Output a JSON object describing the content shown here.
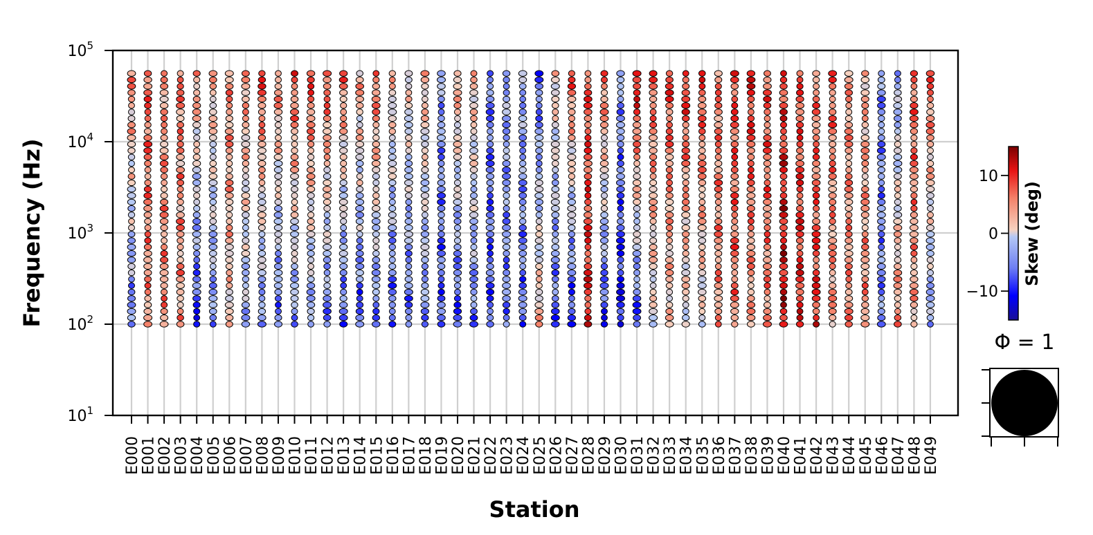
{
  "chart_data": {
    "type": "phase-tensor-pseudosection",
    "xlabel": "Station",
    "ylabel": "Frequency (Hz)",
    "y_scale": "log",
    "ylim": [
      10,
      100000
    ],
    "y_ticks": [
      {
        "value": 10,
        "base": "10",
        "exp": "1"
      },
      {
        "value": 100,
        "base": "10",
        "exp": "2"
      },
      {
        "value": 1000,
        "base": "10",
        "exp": "3"
      },
      {
        "value": 10000,
        "base": "10",
        "exp": "4"
      },
      {
        "value": 100000,
        "base": "10",
        "exp": "5"
      }
    ],
    "grid": true,
    "stations": [
      "E000",
      "E001",
      "E002",
      "E003",
      "E004",
      "E005",
      "E006",
      "E007",
      "E008",
      "E009",
      "E010",
      "E011",
      "E012",
      "E013",
      "E014",
      "E015",
      "E016",
      "E017",
      "E018",
      "E019",
      "E020",
      "E021",
      "E022",
      "E023",
      "E024",
      "E025",
      "E026",
      "E027",
      "E028",
      "E029",
      "E030",
      "E031",
      "E032",
      "E033",
      "E034",
      "E035",
      "E036",
      "E037",
      "E038",
      "E039",
      "E040",
      "E041",
      "E042",
      "E043",
      "E044",
      "E045",
      "E046",
      "E047",
      "E048",
      "E049"
    ],
    "frequency_range_hz": [
      100,
      56000
    ],
    "points_per_station": 40,
    "colorbar": {
      "label": "Skew (deg)",
      "range": [
        -15,
        15
      ],
      "ticks": [
        {
          "value": 10,
          "label": "10"
        },
        {
          "value": 0,
          "label": "0"
        },
        {
          "value": -10,
          "label": "−10"
        }
      ],
      "colormap": [
        "#1a0f96",
        "#0000ff",
        "#6e7ef4",
        "#b4c8f5",
        "#f6d2c0",
        "#f4826a",
        "#e81414",
        "#7a0000"
      ]
    },
    "skew_profiles": [
      {
        "station": "E000",
        "a": -7,
        "b": 6,
        "c": 2
      },
      {
        "station": "E001",
        "a": 5,
        "b": 8,
        "c": -1
      },
      {
        "station": "E002",
        "a": 6,
        "b": 5,
        "c": 1
      },
      {
        "station": "E003",
        "a": 4,
        "b": 7,
        "c": -2
      },
      {
        "station": "E004",
        "a": -10,
        "b": 6,
        "c": 1
      },
      {
        "station": "E005",
        "a": -6,
        "b": 4,
        "c": 0
      },
      {
        "station": "E006",
        "a": 2,
        "b": 6,
        "c": -1
      },
      {
        "station": "E007",
        "a": -4,
        "b": 6,
        "c": 1
      },
      {
        "station": "E008",
        "a": -6,
        "b": 9,
        "c": 0
      },
      {
        "station": "E009",
        "a": -7,
        "b": 6,
        "c": -1
      },
      {
        "station": "E010",
        "a": -5,
        "b": 8,
        "c": 1
      },
      {
        "station": "E011",
        "a": -5,
        "b": 9,
        "c": 0
      },
      {
        "station": "E012",
        "a": -7,
        "b": 9,
        "c": -1
      },
      {
        "station": "E013",
        "a": -8,
        "b": 7,
        "c": 1
      },
      {
        "station": "E014",
        "a": -9,
        "b": 5,
        "c": 2
      },
      {
        "station": "E015",
        "a": -7,
        "b": 8,
        "c": 0
      },
      {
        "station": "E016",
        "a": -8,
        "b": 3,
        "c": -1
      },
      {
        "station": "E017",
        "a": -7,
        "b": 2,
        "c": 1
      },
      {
        "station": "E018",
        "a": -6,
        "b": 4,
        "c": 0
      },
      {
        "station": "E019",
        "a": -8,
        "b": -4,
        "c": -1
      },
      {
        "station": "E020",
        "a": -9,
        "b": 5,
        "c": 0
      },
      {
        "station": "E021",
        "a": -7,
        "b": 4,
        "c": 1
      },
      {
        "station": "E022",
        "a": -8,
        "b": -6,
        "c": 0
      },
      {
        "station": "E023",
        "a": -6,
        "b": -4,
        "c": -1
      },
      {
        "station": "E024",
        "a": -7,
        "b": -4,
        "c": 1
      },
      {
        "station": "E025",
        "a": 4,
        "b": -8,
        "c": 0
      },
      {
        "station": "E026",
        "a": -8,
        "b": 3,
        "c": -1
      },
      {
        "station": "E027",
        "a": -10,
        "b": 8,
        "c": 1
      },
      {
        "station": "E028",
        "a": 10,
        "b": 8,
        "c": 0
      },
      {
        "station": "E029",
        "a": -10,
        "b": 8,
        "c": -1
      },
      {
        "station": "E030",
        "a": -11,
        "b": -4,
        "c": 1
      },
      {
        "station": "E031",
        "a": -9,
        "b": 12,
        "c": 0
      },
      {
        "station": "E032",
        "a": 0,
        "b": 8,
        "c": 0
      },
      {
        "station": "E033",
        "a": 2,
        "b": 9,
        "c": -1
      },
      {
        "station": "E034",
        "a": 0,
        "b": 10,
        "c": 1
      },
      {
        "station": "E035",
        "a": 0,
        "b": 9,
        "c": 0
      },
      {
        "station": "E036",
        "a": 5,
        "b": 7,
        "c": -1
      },
      {
        "station": "E037",
        "a": 6,
        "b": 9,
        "c": 1
      },
      {
        "station": "E038",
        "a": 4,
        "b": 10,
        "c": 0
      },
      {
        "station": "E039",
        "a": 6,
        "b": 8,
        "c": -1
      },
      {
        "station": "E040",
        "a": 12,
        "b": 9,
        "c": 1
      },
      {
        "station": "E041",
        "a": 10,
        "b": 8,
        "c": 0
      },
      {
        "station": "E042",
        "a": 10,
        "b": 6,
        "c": -1
      },
      {
        "station": "E043",
        "a": 5,
        "b": 7,
        "c": 1
      },
      {
        "station": "E044",
        "a": 6,
        "b": 5,
        "c": 0
      },
      {
        "station": "E045",
        "a": 6,
        "b": 4,
        "c": -1
      },
      {
        "station": "E046",
        "a": -6,
        "b": -5,
        "c": 1
      },
      {
        "station": "E047",
        "a": 6,
        "b": -4,
        "c": 0
      },
      {
        "station": "E048",
        "a": 4,
        "b": 8,
        "c": -1
      },
      {
        "station": "E049",
        "a": -5,
        "b": 8,
        "c": 1
      }
    ],
    "scale_legend": {
      "label": "Φ = 1"
    }
  }
}
